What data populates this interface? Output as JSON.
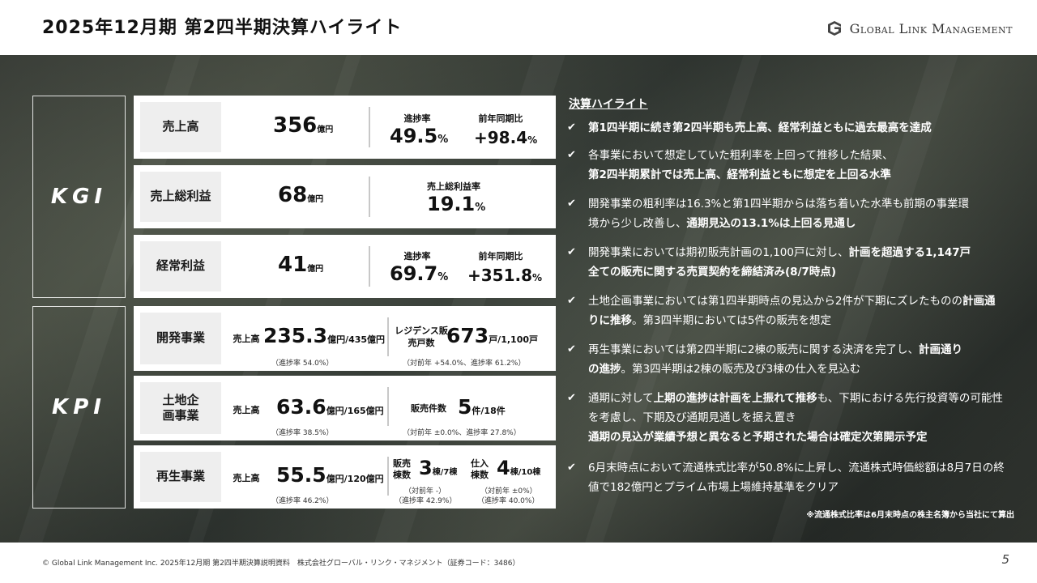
{
  "title": "2025年12月期 第2四半期決算ハイライト",
  "logo_text": "Global Link Management",
  "kgi_label": "KGI",
  "kpi_label": "KPI",
  "kgi": [
    {
      "name": "売上高",
      "value": "356",
      "unit": "億円",
      "col1_label": "進捗率",
      "col1_value": "49.5",
      "col1_unit": "%",
      "col2_label": "前年同期比",
      "col2_value": "+98.4",
      "col2_unit": "%"
    },
    {
      "name": "売上総利益",
      "value": "68",
      "unit": "億円",
      "col1_label": "売上総利益率",
      "col1_value": "19.1",
      "col1_unit": "%"
    },
    {
      "name": "経常利益",
      "value": "41",
      "unit": "億円",
      "col1_label": "進捗率",
      "col1_value": "69.7",
      "col1_unit": "%",
      "col2_label": "前年同期比",
      "col2_value": "+351.8",
      "col2_unit": "%"
    }
  ],
  "kpi": [
    {
      "name": "開発事業",
      "sales_label": "売上高",
      "sales_value": "235.3",
      "sales_unit": "億円/435億円",
      "sales_note": "（進捗率 54.0%）",
      "b_label": "レジデンス販売戸数",
      "b_value": "673",
      "b_unit": "戸/1,100戸",
      "b_note": "（対前年 +54.0%、進捗率 61.2%）"
    },
    {
      "name": "土地企画事業",
      "sales_label": "売上高",
      "sales_value": "63.6",
      "sales_unit": "億円/165億円",
      "sales_note": "（進捗率 38.5%）",
      "b_label": "販売件数",
      "b_value": "5",
      "b_unit": "件/18件",
      "b_note": "（対前年 ±0.0%、進捗率 27.8%）"
    },
    {
      "name": "再生事業",
      "sales_label": "売上高",
      "sales_value": "55.5",
      "sales_unit": "億円/120億円",
      "sales_note": "（進捗率 46.2%）",
      "c_label": "販売棟数",
      "c_value": "3",
      "c_unit": "棟/7棟",
      "c_note1": "（対前年 -）",
      "c_note2": "（進捗率 42.9%）",
      "d_label": "仕入棟数",
      "d_value": "4",
      "d_unit": "棟/10棟",
      "d_note1": "（対前年 ±0%）",
      "d_note2": "（進捗率 40.0%）"
    }
  ],
  "highlights_title": "決算ハイライト",
  "bullets": [
    {
      "pre": "",
      "bold": "第1四半期に続き第2四半期も売上高、経常利益ともに過去最高を達成",
      "post": ""
    },
    {
      "pre": "各事業において想定していた粗利率を上回って推移した結果、",
      "bold": "第2四半期累計では売上高、経常利益ともに想定を上回る水準",
      "post": ""
    },
    {
      "pre": "開発事業の粗利率は16.3%と第1四半期からは落ち着いた水準も前期の事業環境から少し改善し、",
      "bold": "通期見込の13.1%は上回る見通し",
      "post": ""
    },
    {
      "pre": "開発事業においては期初販売計画の1,100戸に対し、",
      "bold": "計画を超過する1,147戸全ての販売に関する売買契約を締結済み(8/7時点)",
      "post": ""
    },
    {
      "pre": "土地企画事業においては第1四半期時点の見込から2件が下期にズレたものの",
      "bold": "計画通りに推移",
      "post": "。第3四半期においては5件の販売を想定"
    },
    {
      "pre": "再生事業においては第2四半期に2棟の販売に関する決済を完了し、",
      "bold": "計画通りの進捗",
      "post": "。第3四半期は2棟の販売及び3棟の仕入を見込む"
    },
    {
      "pre": "通期に対して",
      "bold": "上期の進捗は計画を上振れて推移",
      "post": "も、下期における先行投資等の可能性を考慮し、下期及び通期見通しを据え置き",
      "bold2": "通期の見込が業績予想と異なると予期された場合は確定次第開示予定"
    },
    {
      "pre": "6月末時点において流通株式比率が50.8%に上昇し、流通株式時価総額は8月7日の終値で182億円とプライム市場上場維持基準をクリア",
      "bold": "",
      "post": ""
    }
  ],
  "footnote": "※流通株式比率は6月末時点の株主名簿から当社にて算出",
  "footer": "© Global Link Management Inc. 2025年12月期 第2四半期決算説明資料　株式会社グローバル・リンク・マネジメント（証券コード：3486）",
  "page_number": "5"
}
